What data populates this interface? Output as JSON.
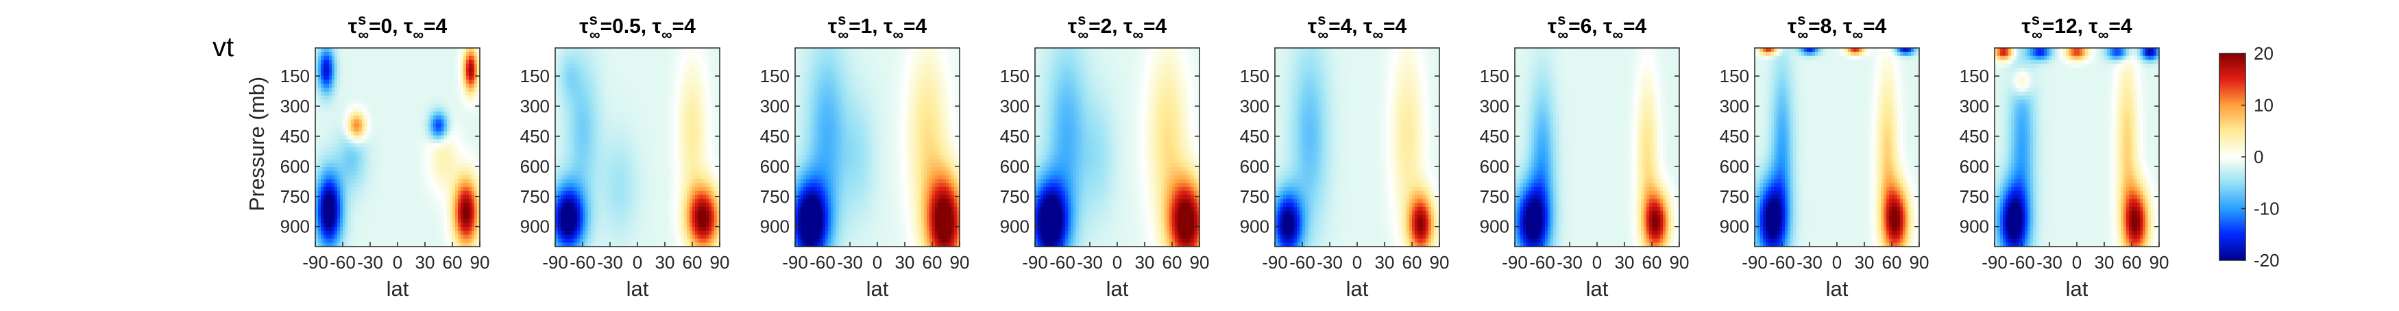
{
  "figure_label": "vt",
  "chart_data": {
    "type": "heatmap",
    "variable": "vt",
    "xlabel": "lat",
    "ylabel": "Pressure (mb)",
    "xticks": [
      -90,
      -60,
      -30,
      0,
      30,
      60,
      90
    ],
    "yticks": [
      150,
      300,
      450,
      600,
      750,
      900
    ],
    "xlim": [
      -90,
      90
    ],
    "ylim": [
      1000,
      10
    ],
    "colorbar": {
      "ticks": [
        20,
        10,
        0,
        -10,
        -20
      ],
      "range": [
        -20,
        20
      ],
      "colormap": "jet-like with white center"
    },
    "panels": [
      {
        "title_lhs": "τ",
        "title_sub_sup": "s",
        "title_sub": "∞",
        "title_val1": "=0, ",
        "title_rhs": "τ",
        "title_rhs_sub": "∞",
        "title_val2": "=4"
      },
      {
        "title_lhs": "τ",
        "title_sub_sup": "s",
        "title_sub": "∞",
        "title_val1": "=0.5, ",
        "title_rhs": "τ",
        "title_rhs_sub": "∞",
        "title_val2": "=4"
      },
      {
        "title_lhs": "τ",
        "title_sub_sup": "s",
        "title_sub": "∞",
        "title_val1": "=1, ",
        "title_rhs": "τ",
        "title_rhs_sub": "∞",
        "title_val2": "=4"
      },
      {
        "title_lhs": "τ",
        "title_sub_sup": "s",
        "title_sub": "∞",
        "title_val1": "=2, ",
        "title_rhs": "τ",
        "title_rhs_sub": "∞",
        "title_val2": "=4"
      },
      {
        "title_lhs": "τ",
        "title_sub_sup": "s",
        "title_sub": "∞",
        "title_val1": "=4, ",
        "title_rhs": "τ",
        "title_rhs_sub": "∞",
        "title_val2": "=4"
      },
      {
        "title_lhs": "τ",
        "title_sub_sup": "s",
        "title_sub": "∞",
        "title_val1": "=6, ",
        "title_rhs": "τ",
        "title_rhs_sub": "∞",
        "title_val2": "=4"
      },
      {
        "title_lhs": "τ",
        "title_sub_sup": "s",
        "title_sub": "∞",
        "title_val1": "=8, ",
        "title_rhs": "τ",
        "title_rhs_sub": "∞",
        "title_val2": "=4"
      },
      {
        "title_lhs": "τ",
        "title_sub_sup": "s",
        "title_sub": "∞",
        "title_val1": "=12, ",
        "title_rhs": "τ",
        "title_rhs_sub": "∞",
        "title_val2": "=4"
      }
    ],
    "features": [
      [
        {
          "lat": -75,
          "p": 820,
          "v": -22,
          "dlat": 14,
          "dp": 180
        },
        {
          "lat": 75,
          "p": 830,
          "v": 22,
          "dlat": 14,
          "dp": 170
        },
        {
          "lat": -78,
          "p": 120,
          "v": -16,
          "dlat": 9,
          "dp": 110
        },
        {
          "lat": 80,
          "p": 120,
          "v": 20,
          "dlat": 8,
          "dp": 110
        },
        {
          "lat": -45,
          "p": 400,
          "v": 14,
          "dlat": 10,
          "dp": 70
        },
        {
          "lat": 45,
          "p": 400,
          "v": -14,
          "dlat": 10,
          "dp": 70
        },
        {
          "lat": -50,
          "p": 560,
          "v": -5,
          "dlat": 16,
          "dp": 160
        },
        {
          "lat": 50,
          "p": 560,
          "v": 5,
          "dlat": 16,
          "dp": 160
        }
      ],
      [
        {
          "lat": -76,
          "p": 860,
          "v": -22,
          "dlat": 18,
          "dp": 160
        },
        {
          "lat": 72,
          "p": 860,
          "v": 22,
          "dlat": 18,
          "dp": 160
        },
        {
          "lat": -60,
          "p": 420,
          "v": -5,
          "dlat": 18,
          "dp": 350
        },
        {
          "lat": 60,
          "p": 420,
          "v": 6,
          "dlat": 16,
          "dp": 350
        },
        {
          "lat": -20,
          "p": 700,
          "v": -3,
          "dlat": 20,
          "dp": 250
        },
        {
          "lat": -75,
          "p": 150,
          "v": -3,
          "dlat": 12,
          "dp": 120
        }
      ],
      [
        {
          "lat": -74,
          "p": 880,
          "v": -24,
          "dlat": 20,
          "dp": 200
        },
        {
          "lat": 74,
          "p": 880,
          "v": 24,
          "dlat": 20,
          "dp": 230
        },
        {
          "lat": -55,
          "p": 450,
          "v": -7,
          "dlat": 22,
          "dp": 450
        },
        {
          "lat": 55,
          "p": 450,
          "v": 7,
          "dlat": 22,
          "dp": 450
        },
        {
          "lat": -20,
          "p": 550,
          "v": -3,
          "dlat": 18,
          "dp": 300
        }
      ],
      [
        {
          "lat": -74,
          "p": 880,
          "v": -24,
          "dlat": 20,
          "dp": 200
        },
        {
          "lat": 76,
          "p": 880,
          "v": 24,
          "dlat": 20,
          "dp": 210
        },
        {
          "lat": -55,
          "p": 450,
          "v": -7,
          "dlat": 22,
          "dp": 450
        },
        {
          "lat": 55,
          "p": 450,
          "v": 7,
          "dlat": 22,
          "dp": 450
        },
        {
          "lat": -20,
          "p": 550,
          "v": -3,
          "dlat": 18,
          "dp": 300
        }
      ],
      [
        {
          "lat": -76,
          "p": 890,
          "v": -20,
          "dlat": 16,
          "dp": 160
        },
        {
          "lat": 70,
          "p": 890,
          "v": 20,
          "dlat": 14,
          "dp": 150
        },
        {
          "lat": -52,
          "p": 450,
          "v": -6,
          "dlat": 20,
          "dp": 450
        },
        {
          "lat": 55,
          "p": 450,
          "v": 6,
          "dlat": 18,
          "dp": 450
        }
      ],
      [
        {
          "lat": -72,
          "p": 880,
          "v": -20,
          "dlat": 18,
          "dp": 180
        },
        {
          "lat": 65,
          "p": 880,
          "v": 20,
          "dlat": 14,
          "dp": 150
        },
        {
          "lat": -60,
          "p": 600,
          "v": -8,
          "dlat": 14,
          "dp": 400
        },
        {
          "lat": 55,
          "p": 550,
          "v": 7,
          "dlat": 12,
          "dp": 400
        }
      ],
      [
        {
          "lat": -72,
          "p": 870,
          "v": -20,
          "dlat": 16,
          "dp": 190
        },
        {
          "lat": 65,
          "p": 870,
          "v": 20,
          "dlat": 14,
          "dp": 170
        },
        {
          "lat": -60,
          "p": 550,
          "v": -8,
          "dlat": 12,
          "dp": 450
        },
        {
          "lat": 55,
          "p": 550,
          "v": 8,
          "dlat": 12,
          "dp": 450
        },
        {
          "lat": -75,
          "p": 20,
          "v": 16,
          "dlat": 10,
          "dp": 25
        },
        {
          "lat": -30,
          "p": 20,
          "v": -14,
          "dlat": 10,
          "dp": 25
        },
        {
          "lat": 20,
          "p": 20,
          "v": 16,
          "dlat": 10,
          "dp": 25
        },
        {
          "lat": 75,
          "p": 20,
          "v": -16,
          "dlat": 10,
          "dp": 25
        }
      ],
      [
        {
          "lat": -70,
          "p": 880,
          "v": -20,
          "dlat": 16,
          "dp": 180
        },
        {
          "lat": 65,
          "p": 880,
          "v": 20,
          "dlat": 14,
          "dp": 170
        },
        {
          "lat": -60,
          "p": 500,
          "v": -8,
          "dlat": 14,
          "dp": 450
        },
        {
          "lat": 55,
          "p": 500,
          "v": 8,
          "dlat": 12,
          "dp": 450
        },
        {
          "lat": -60,
          "p": 180,
          "v": 8,
          "dlat": 10,
          "dp": 70
        },
        {
          "lat": -80,
          "p": 30,
          "v": 18,
          "dlat": 10,
          "dp": 40
        },
        {
          "lat": -40,
          "p": 30,
          "v": -14,
          "dlat": 12,
          "dp": 40
        },
        {
          "lat": 0,
          "p": 30,
          "v": 16,
          "dlat": 12,
          "dp": 40
        },
        {
          "lat": 45,
          "p": 30,
          "v": -14,
          "dlat": 12,
          "dp": 40
        },
        {
          "lat": 80,
          "p": 30,
          "v": -18,
          "dlat": 10,
          "dp": 40
        }
      ]
    ]
  }
}
